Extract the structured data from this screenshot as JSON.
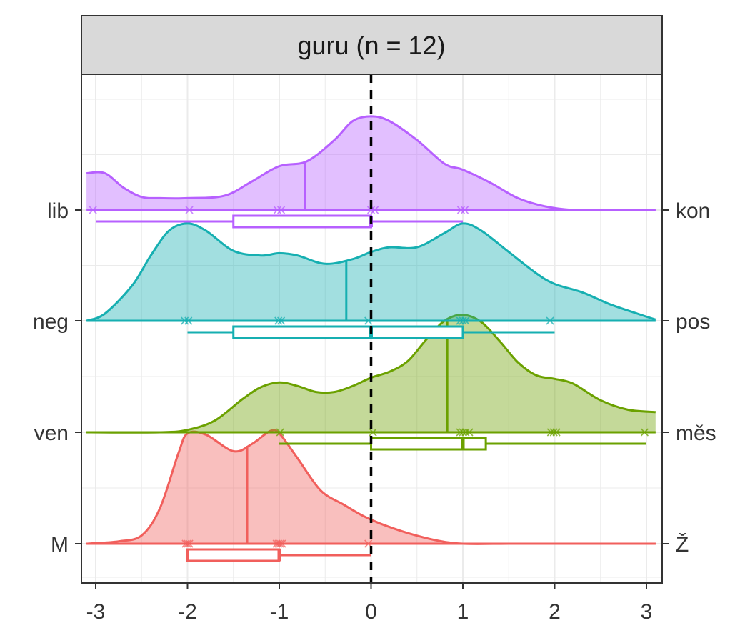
{
  "chart_data": {
    "type": "ridgeline",
    "facet_title": "guru (n = 12)",
    "xlim": [
      -3.1,
      3.1
    ],
    "x_ticks": [
      -3,
      -2,
      -1,
      0,
      1,
      2,
      3
    ],
    "x_tick_labels": [
      "-3",
      "-2",
      "-1",
      "0",
      "1",
      "2",
      "3"
    ],
    "reference_line_x": 0,
    "grid": true,
    "series": [
      {
        "left_label": "M",
        "right_label": "Ž",
        "color": "#F15F5C",
        "points": [
          -2.02,
          -2.0,
          -1.98,
          -1.03,
          -1.01,
          -0.99,
          -0.97,
          -0.03
        ],
        "density_x": [
          -3.1,
          -2.75,
          -2.5,
          -2.3,
          -2.1,
          -2.0,
          -1.8,
          -1.5,
          -1.3,
          -1.1,
          -1.0,
          -0.8,
          -0.55,
          -0.3,
          -0.1,
          0.1,
          0.4,
          0.7,
          1.0,
          1.5,
          2.0,
          3.1
        ],
        "density_y": [
          0.0,
          0.02,
          0.07,
          0.3,
          0.76,
          0.93,
          0.92,
          0.78,
          0.84,
          0.95,
          0.93,
          0.72,
          0.45,
          0.33,
          0.24,
          0.17,
          0.09,
          0.03,
          0.0,
          0.0,
          0.0,
          0.0
        ],
        "mean": -1.35,
        "box": {
          "min": -2.0,
          "q1": -2.0,
          "median": -1.0,
          "q3": -1.0,
          "max": 0.0
        }
      },
      {
        "left_label": "ven",
        "right_label": "měs",
        "color": "#6BA100",
        "points": [
          -0.99,
          0.02,
          0.97,
          1.0,
          1.03,
          1.07,
          1.96,
          1.99,
          2.02,
          2.98
        ],
        "density_x": [
          -3.1,
          -2.3,
          -2.0,
          -1.7,
          -1.4,
          -1.2,
          -1.0,
          -0.8,
          -0.6,
          -0.4,
          -0.2,
          0.0,
          0.2,
          0.4,
          0.6,
          0.8,
          1.0,
          1.2,
          1.4,
          1.6,
          1.8,
          2.0,
          2.2,
          2.5,
          2.8,
          3.1
        ],
        "density_y": [
          0.0,
          0.0,
          0.02,
          0.1,
          0.28,
          0.38,
          0.42,
          0.39,
          0.34,
          0.34,
          0.39,
          0.46,
          0.51,
          0.6,
          0.78,
          0.94,
          0.99,
          0.93,
          0.77,
          0.59,
          0.48,
          0.45,
          0.41,
          0.27,
          0.19,
          0.17
        ],
        "mean": 0.83,
        "box": {
          "min": -1.0,
          "q1": 0.0,
          "median": 1.0,
          "q3": 1.25,
          "max": 3.0
        }
      },
      {
        "left_label": "neg",
        "right_label": "pos",
        "color": "#16AFB1",
        "points": [
          -2.03,
          -1.99,
          -1.01,
          -0.98,
          -0.03,
          0.97,
          1.0,
          1.03,
          1.95
        ],
        "density_x": [
          -3.1,
          -2.9,
          -2.6,
          -2.4,
          -2.2,
          -2.0,
          -1.8,
          -1.5,
          -1.2,
          -1.0,
          -0.8,
          -0.5,
          -0.2,
          0.0,
          0.2,
          0.5,
          0.8,
          1.0,
          1.2,
          1.5,
          1.8,
          2.0,
          2.3,
          2.6,
          2.9,
          3.1
        ],
        "density_y": [
          0.0,
          0.06,
          0.3,
          0.55,
          0.76,
          0.82,
          0.76,
          0.59,
          0.55,
          0.57,
          0.55,
          0.48,
          0.52,
          0.58,
          0.62,
          0.62,
          0.74,
          0.82,
          0.76,
          0.58,
          0.4,
          0.31,
          0.24,
          0.14,
          0.06,
          0.01
        ],
        "mean": -0.27,
        "box": {
          "min": -2.0,
          "q1": -1.5,
          "median": 0.0,
          "q3": 1.0,
          "max": 2.0
        }
      },
      {
        "left_label": "lib",
        "right_label": "kon",
        "color": "#B760FF",
        "points": [
          -3.03,
          -1.98,
          -1.02,
          -0.98,
          0.0,
          0.04,
          0.98,
          1.02
        ],
        "density_x": [
          -3.1,
          -2.9,
          -2.7,
          -2.5,
          -2.3,
          -2.0,
          -1.6,
          -1.3,
          -1.0,
          -0.7,
          -0.4,
          -0.2,
          0.0,
          0.2,
          0.5,
          0.8,
          1.0,
          1.3,
          1.6,
          1.9,
          2.2,
          2.5,
          2.8,
          3.1
        ],
        "density_y": [
          0.31,
          0.31,
          0.19,
          0.11,
          0.1,
          0.1,
          0.12,
          0.24,
          0.37,
          0.41,
          0.59,
          0.75,
          0.79,
          0.75,
          0.59,
          0.39,
          0.34,
          0.23,
          0.1,
          0.03,
          0.0,
          0.0,
          0.0,
          0.0
        ],
        "mean": -0.72,
        "box": {
          "min": -3.0,
          "q1": -1.5,
          "median": 0.0,
          "q3": 0.0,
          "max": 1.0
        }
      }
    ]
  }
}
